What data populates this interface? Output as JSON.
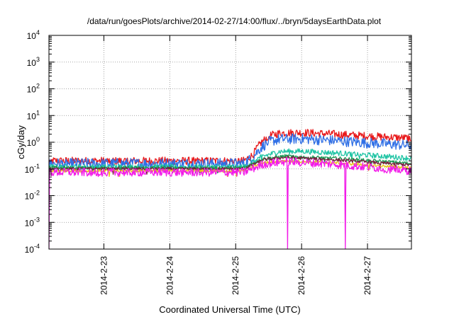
{
  "chart_data": {
    "type": "line",
    "title": "/data/run/goesPlots/archive/2014-02-27/14:00/flux/../bryn/5daysEarthData.plot",
    "xlabel": "Coordinated Universal Time (UTC)",
    "ylabel": "cGy/day",
    "y_scale": "log",
    "ylim": [
      0.0001,
      10000
    ],
    "xlim": [
      "2014-02-22T04:00",
      "2014-02-27T16:00"
    ],
    "y_ticks": [
      {
        "value": 0.0001,
        "base": "10",
        "exp": "-4"
      },
      {
        "value": 0.001,
        "base": "10",
        "exp": "-3"
      },
      {
        "value": 0.01,
        "base": "10",
        "exp": "-2"
      },
      {
        "value": 0.1,
        "base": "10",
        "exp": "-1"
      },
      {
        "value": 1,
        "base": "10",
        "exp": "0"
      },
      {
        "value": 10,
        "base": "10",
        "exp": "1"
      },
      {
        "value": 100,
        "base": "10",
        "exp": "2"
      },
      {
        "value": 1000,
        "base": "10",
        "exp": "3"
      },
      {
        "value": 10000,
        "base": "10",
        "exp": "4"
      }
    ],
    "x_ticks": [
      {
        "value": "2014-02-23T00:00",
        "label": "2014-2-23"
      },
      {
        "value": "2014-02-24T00:00",
        "label": "2014-2-24"
      },
      {
        "value": "2014-02-25T00:00",
        "label": "2014-2-25"
      },
      {
        "value": "2014-02-26T00:00",
        "label": "2014-2-26"
      },
      {
        "value": "2014-02-27T00:00",
        "label": "2014-2-27"
      }
    ],
    "grid": true,
    "legend": "none",
    "series": [
      {
        "color": "#e8191b",
        "noise": 0.15,
        "points": [
          [
            "2014-02-22T04:00",
            0.2
          ],
          [
            "2014-02-25T03:00",
            0.2
          ],
          [
            "2014-02-25T06:00",
            0.32
          ],
          [
            "2014-02-25T09:00",
            0.9
          ],
          [
            "2014-02-25T12:00",
            1.7
          ],
          [
            "2014-02-25T16:00",
            2.2
          ],
          [
            "2014-02-26T00:00",
            2.3
          ],
          [
            "2014-02-26T12:00",
            2.0
          ],
          [
            "2014-02-27T00:00",
            1.7
          ],
          [
            "2014-02-27T16:00",
            1.4
          ]
        ]
      },
      {
        "color": "#2f6fe6",
        "noise": 0.2,
        "points": [
          [
            "2014-02-22T04:00",
            0.16
          ],
          [
            "2014-02-25T03:00",
            0.16
          ],
          [
            "2014-02-25T06:00",
            0.26
          ],
          [
            "2014-02-25T09:00",
            0.6
          ],
          [
            "2014-02-25T12:00",
            1.05
          ],
          [
            "2014-02-25T16:00",
            1.3
          ],
          [
            "2014-02-26T00:00",
            1.35
          ],
          [
            "2014-02-26T12:00",
            1.15
          ],
          [
            "2014-02-27T00:00",
            0.95
          ],
          [
            "2014-02-27T16:00",
            0.75
          ]
        ]
      },
      {
        "color": "#1fc4a4",
        "noise": 0.1,
        "points": [
          [
            "2014-02-22T04:00",
            0.12
          ],
          [
            "2014-02-25T03:00",
            0.12
          ],
          [
            "2014-02-25T09:00",
            0.28
          ],
          [
            "2014-02-25T16:00",
            0.45
          ],
          [
            "2014-02-26T00:00",
            0.46
          ],
          [
            "2014-02-26T12:00",
            0.4
          ],
          [
            "2014-02-27T00:00",
            0.33
          ],
          [
            "2014-02-27T16:00",
            0.25
          ]
        ]
      },
      {
        "color": "#1b9a55",
        "noise": 0.07,
        "points": [
          [
            "2014-02-22T04:00",
            0.11
          ],
          [
            "2014-02-25T03:00",
            0.11
          ],
          [
            "2014-02-25T10:00",
            0.24
          ],
          [
            "2014-02-25T18:00",
            0.3
          ],
          [
            "2014-02-26T12:00",
            0.25
          ],
          [
            "2014-02-27T16:00",
            0.16
          ]
        ]
      },
      {
        "color": "#7a1f3d",
        "noise": 0.06,
        "points": [
          [
            "2014-02-22T04:00",
            0.1
          ],
          [
            "2014-02-25T03:00",
            0.1
          ],
          [
            "2014-02-25T10:00",
            0.22
          ],
          [
            "2014-02-25T18:00",
            0.27
          ],
          [
            "2014-02-26T12:00",
            0.22
          ],
          [
            "2014-02-27T16:00",
            0.14
          ]
        ]
      },
      {
        "color": "#e6c619",
        "noise": 0.05,
        "points": [
          [
            "2014-02-22T04:00",
            0.085
          ],
          [
            "2014-02-25T03:00",
            0.085
          ],
          [
            "2014-02-25T10:00",
            0.17
          ],
          [
            "2014-02-25T18:00",
            0.2
          ],
          [
            "2014-02-26T12:00",
            0.17
          ],
          [
            "2014-02-27T16:00",
            0.11
          ]
        ]
      },
      {
        "color": "#f21be8",
        "noise": 0.16,
        "points": [
          [
            "2014-02-22T04:00",
            0.075
          ],
          [
            "2014-02-25T03:00",
            0.075
          ],
          [
            "2014-02-25T10:00",
            0.15
          ],
          [
            "2014-02-25T18:00",
            0.19
          ],
          [
            "2014-02-26T12:00",
            0.15
          ],
          [
            "2014-02-27T16:00",
            0.085
          ]
        ],
        "dropouts": [
          [
            "2014-02-22T04:00",
            0.0001
          ],
          [
            "2014-02-25T19:00",
            0.0001
          ],
          [
            "2014-02-26T16:00",
            0.0001
          ]
        ]
      }
    ]
  }
}
